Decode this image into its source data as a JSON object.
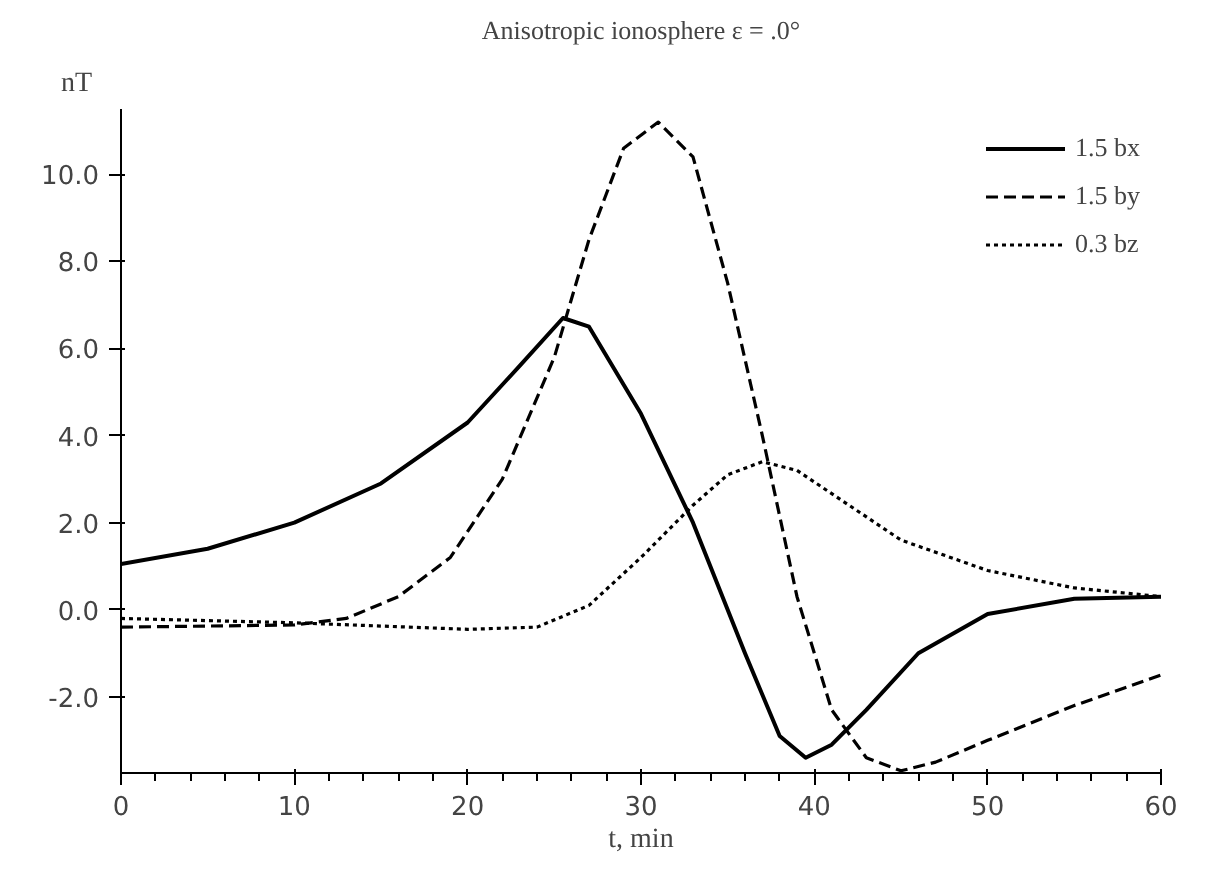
{
  "chart_data": {
    "type": "line",
    "title": "Anisotropic ionosphere ε = .0°",
    "xlabel": "t, min",
    "ylabel": "nT",
    "xlim": [
      0,
      60
    ],
    "xticks": [
      0,
      10,
      20,
      30,
      40,
      50,
      60
    ],
    "ylim": [
      -3.75,
      11.5
    ],
    "yticks": [
      {
        "value": -2,
        "label": "-2.0"
      },
      {
        "value": 0,
        "label": "0.0"
      },
      {
        "value": 2,
        "label": "2.0"
      },
      {
        "value": 4,
        "label": "4.0"
      },
      {
        "value": 6,
        "label": "6.0"
      },
      {
        "value": 8,
        "label": "8.0"
      },
      {
        "value": 10,
        "label": "10.0"
      }
    ],
    "grid": false,
    "legend": "top right",
    "series": [
      {
        "name": "1.5 bx",
        "color": "#000000",
        "line_style": "solid",
        "x": [
          0,
          5,
          10,
          15,
          20,
          23,
          25.5,
          27,
          30,
          33,
          36,
          38,
          39.5,
          41,
          43,
          46,
          50,
          55,
          60
        ],
        "values": [
          1.05,
          1.4,
          2.0,
          2.9,
          4.3,
          5.6,
          6.7,
          6.5,
          4.5,
          2.0,
          -1.0,
          -2.9,
          -3.4,
          -3.1,
          -2.3,
          -1.0,
          -0.1,
          0.25,
          0.3
        ]
      },
      {
        "name": "1.5 by",
        "color": "#000000",
        "line_style": "dashed",
        "x": [
          0,
          10,
          13,
          16,
          19,
          22,
          25,
          27,
          29,
          31,
          33,
          35,
          37,
          39,
          41,
          43,
          45,
          47,
          50,
          55,
          60
        ],
        "values": [
          -0.4,
          -0.35,
          -0.2,
          0.3,
          1.2,
          3.0,
          5.8,
          8.5,
          10.6,
          11.2,
          10.4,
          7.5,
          4.0,
          0.3,
          -2.3,
          -3.4,
          -3.7,
          -3.5,
          -3.0,
          -2.2,
          -1.5
        ]
      },
      {
        "name": "0.3 bz",
        "color": "#000000",
        "line_style": "dotted",
        "x": [
          0,
          10,
          20,
          24,
          27,
          30,
          33,
          35,
          37,
          39,
          42,
          45,
          50,
          55,
          60
        ],
        "values": [
          -0.2,
          -0.3,
          -0.45,
          -0.4,
          0.1,
          1.2,
          2.4,
          3.1,
          3.4,
          3.2,
          2.4,
          1.6,
          0.9,
          0.5,
          0.3
        ]
      }
    ]
  }
}
